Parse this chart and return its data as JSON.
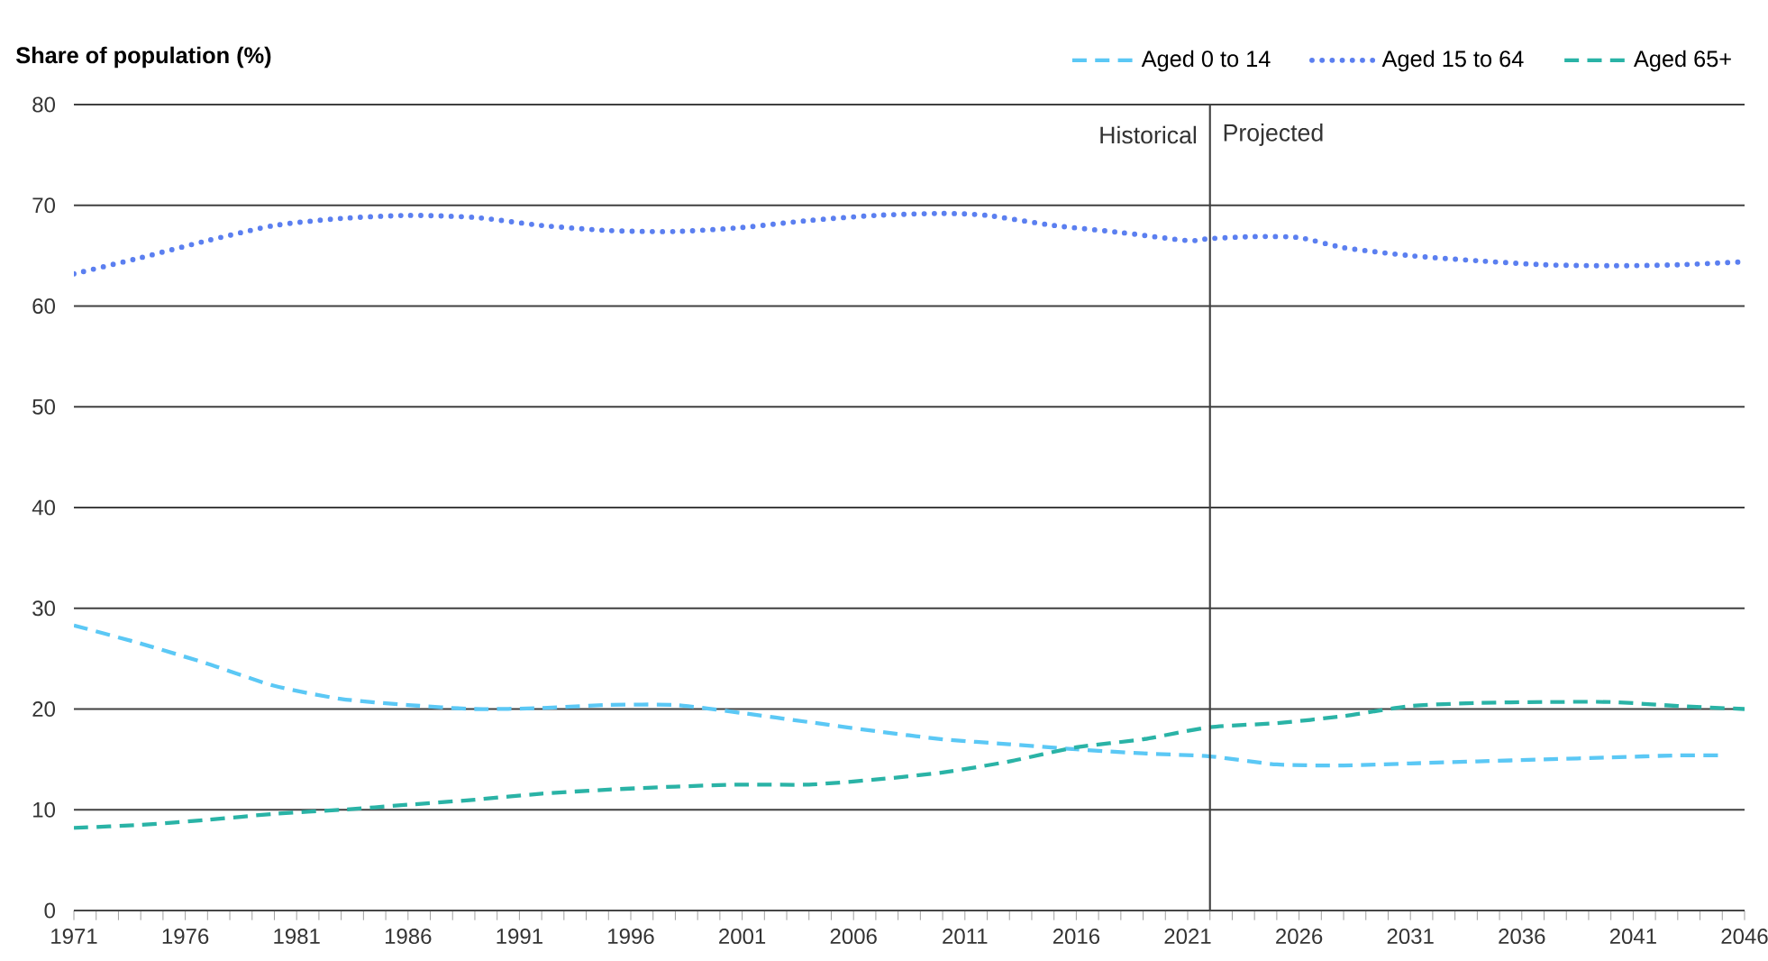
{
  "chart_data": {
    "type": "line",
    "ylabel": "Share of population (%)",
    "xlim": [
      1971,
      2046
    ],
    "ylim": [
      0,
      80
    ],
    "yticks": [
      0,
      10,
      20,
      30,
      40,
      50,
      60,
      70,
      80
    ],
    "xticks": [
      1971,
      {
        "value": 1972,
        "label": null
      },
      {
        "value": 1973,
        "label": null
      },
      {
        "value": 1974,
        "label": null
      },
      {
        "value": 1975,
        "label": null
      },
      1976,
      {
        "value": 1977,
        "label": null
      },
      {
        "value": 1978,
        "label": null
      },
      {
        "value": 1979,
        "label": null
      },
      {
        "value": 1980,
        "label": null
      },
      1981,
      {
        "value": 1982,
        "label": null
      },
      {
        "value": 1983,
        "label": null
      },
      {
        "value": 1984,
        "label": null
      },
      {
        "value": 1985,
        "label": null
      },
      1986,
      {
        "value": 1987,
        "label": null
      },
      {
        "value": 1988,
        "label": null
      },
      {
        "value": 1989,
        "label": null
      },
      {
        "value": 1990,
        "label": null
      },
      1991,
      {
        "value": 1992,
        "label": null
      },
      {
        "value": 1993,
        "label": null
      },
      {
        "value": 1994,
        "label": null
      },
      {
        "value": 1995,
        "label": null
      },
      1996,
      {
        "value": 1997,
        "label": null
      },
      {
        "value": 1998,
        "label": null
      },
      {
        "value": 1999,
        "label": null
      },
      {
        "value": 2000,
        "label": null
      },
      2001,
      {
        "value": 2002,
        "label": null
      },
      {
        "value": 2003,
        "label": null
      },
      {
        "value": 2004,
        "label": null
      },
      {
        "value": 2005,
        "label": null
      },
      2006,
      {
        "value": 2007,
        "label": null
      },
      {
        "value": 2008,
        "label": null
      },
      {
        "value": 2009,
        "label": null
      },
      {
        "value": 2010,
        "label": null
      },
      2011,
      {
        "value": 2012,
        "label": null
      },
      {
        "value": 2013,
        "label": null
      },
      {
        "value": 2014,
        "label": null
      },
      {
        "value": 2015,
        "label": null
      },
      2016,
      {
        "value": 2017,
        "label": null
      },
      {
        "value": 2018,
        "label": null
      },
      {
        "value": 2019,
        "label": null
      },
      {
        "value": 2020,
        "label": null
      },
      2021,
      {
        "value": 2022,
        "label": null
      },
      {
        "value": 2023,
        "label": null
      },
      {
        "value": 2024,
        "label": null
      },
      {
        "value": 2025,
        "label": null
      },
      2026,
      {
        "value": 2027,
        "label": null
      },
      {
        "value": 2028,
        "label": null
      },
      {
        "value": 2029,
        "label": null
      },
      {
        "value": 2030,
        "label": null
      },
      2031,
      {
        "value": 2032,
        "label": null
      },
      {
        "value": 2033,
        "label": null
      },
      {
        "value": 2034,
        "label": null
      },
      {
        "value": 2035,
        "label": null
      },
      2036,
      {
        "value": 2037,
        "label": null
      },
      {
        "value": 2038,
        "label": null
      },
      {
        "value": 2039,
        "label": null
      },
      {
        "value": 2040,
        "label": null
      },
      2041,
      {
        "value": 2042,
        "label": null
      },
      {
        "value": 2043,
        "label": null
      },
      {
        "value": 2044,
        "label": null
      },
      {
        "value": 2045,
        "label": null
      },
      2046
    ],
    "grid": "y",
    "legend": "top right",
    "marker": "none",
    "ref_lines": [
      {
        "axis": "x",
        "value": 2022,
        "color": "#404040"
      }
    ],
    "annotations": [
      {
        "text": "Historical",
        "x": 2022,
        "y": 77
      },
      {
        "text": "Projected",
        "x": 2022,
        "y": 77
      }
    ],
    "series": [
      {
        "name": "Aged 0 to 14",
        "color": "#5bc8f5",
        "line_style": "dashed",
        "x": [
          1971,
          1974,
          1977,
          1980,
          1983,
          1986,
          1989,
          1992,
          1995,
          1998,
          2001,
          2004,
          2007,
          2010,
          2013,
          2016,
          2019,
          2022,
          2025,
          2028,
          2031,
          2034,
          2037,
          2040,
          2043,
          2045
        ],
        "values": [
          28.3,
          26.5,
          24.5,
          22.3,
          21.0,
          20.4,
          20.0,
          20.1,
          20.4,
          20.4,
          19.6,
          18.7,
          17.8,
          17.0,
          16.5,
          16.0,
          15.6,
          15.3,
          14.5,
          14.4,
          14.6,
          14.8,
          15.0,
          15.2,
          15.4,
          15.4
        ]
      },
      {
        "name": "Aged 15 to 64",
        "color": "#5b7ff0",
        "line_style": "dotted",
        "x": [
          1971,
          1974,
          1977,
          1980,
          1983,
          1986,
          1989,
          1992,
          1995,
          1998,
          2001,
          2004,
          2007,
          2010,
          2012,
          2015,
          2018,
          2021,
          2022,
          2024,
          2026,
          2028,
          2031,
          2034,
          2037,
          2040,
          2043,
          2046
        ],
        "values": [
          63.2,
          64.8,
          66.5,
          68.0,
          68.7,
          69.0,
          68.8,
          68.0,
          67.5,
          67.4,
          67.8,
          68.5,
          69.0,
          69.2,
          69.0,
          68.0,
          67.3,
          66.5,
          66.7,
          66.9,
          66.8,
          65.8,
          65.0,
          64.5,
          64.1,
          64.0,
          64.1,
          64.4
        ]
      },
      {
        "name": "Aged 65+",
        "color": "#2ab3a6",
        "line_style": "dashed",
        "x": [
          1971,
          1974,
          1977,
          1980,
          1983,
          1986,
          1989,
          1992,
          1995,
          1998,
          2001,
          2004,
          2007,
          2010,
          2013,
          2016,
          2019,
          2022,
          2025,
          2028,
          2031,
          2034,
          2037,
          2040,
          2043,
          2046
        ],
        "values": [
          8.2,
          8.5,
          9.0,
          9.6,
          10.0,
          10.5,
          11.0,
          11.6,
          12.0,
          12.3,
          12.5,
          12.5,
          13.0,
          13.7,
          14.8,
          16.2,
          17.0,
          18.2,
          18.6,
          19.3,
          20.3,
          20.6,
          20.7,
          20.7,
          20.3,
          20.0
        ]
      }
    ]
  }
}
